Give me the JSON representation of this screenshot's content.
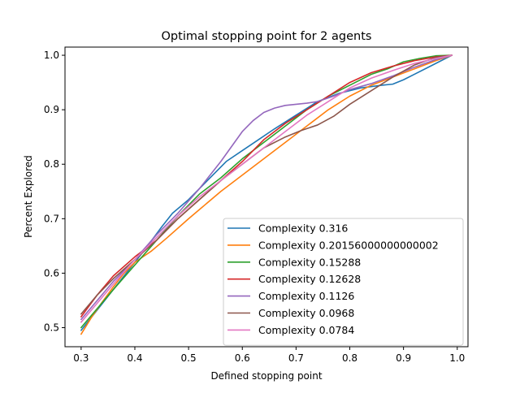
{
  "chart_data": {
    "type": "line",
    "title": "Optimal stopping point for 2 agents",
    "xlabel": "Defined stopping point",
    "ylabel": "Percent Explored",
    "xlim": [
      0.27,
      1.02
    ],
    "ylim": [
      0.465,
      1.015
    ],
    "xticks": [
      0.3,
      0.4,
      0.5,
      0.6,
      0.7,
      0.8,
      0.9,
      1.0
    ],
    "xtick_labels": [
      "0.3",
      "0.4",
      "0.5",
      "0.6",
      "0.7",
      "0.8",
      "0.9",
      "1.0"
    ],
    "yticks": [
      0.5,
      0.6,
      0.7,
      0.8,
      0.9,
      1.0
    ],
    "ytick_labels": [
      "0.5",
      "0.6",
      "0.7",
      "0.8",
      "0.9",
      "1.0"
    ],
    "grid": false,
    "legend_position": "lower-right",
    "series": [
      {
        "name": "Complexity 0.316",
        "color": "#1f77b4",
        "x": [
          0.3,
          0.32,
          0.34,
          0.36,
          0.38,
          0.4,
          0.42,
          0.45,
          0.47,
          0.5,
          0.53,
          0.55,
          0.57,
          0.6,
          0.63,
          0.66,
          0.7,
          0.74,
          0.78,
          0.82,
          0.86,
          0.88,
          0.9,
          0.92,
          0.95,
          0.97,
          0.99
        ],
        "y": [
          0.495,
          0.52,
          0.545,
          0.57,
          0.595,
          0.62,
          0.645,
          0.685,
          0.71,
          0.735,
          0.765,
          0.785,
          0.805,
          0.825,
          0.845,
          0.865,
          0.89,
          0.915,
          0.93,
          0.94,
          0.945,
          0.947,
          0.955,
          0.965,
          0.98,
          0.99,
          1.0
        ]
      },
      {
        "name": "Complexity 0.20156000000000002",
        "color": "#ff7f0e",
        "x": [
          0.3,
          0.32,
          0.34,
          0.36,
          0.38,
          0.4,
          0.43,
          0.46,
          0.5,
          0.53,
          0.56,
          0.6,
          0.64,
          0.68,
          0.72,
          0.76,
          0.8,
          0.84,
          0.88,
          0.92,
          0.96,
          0.99
        ],
        "y": [
          0.488,
          0.52,
          0.548,
          0.575,
          0.6,
          0.62,
          0.64,
          0.665,
          0.7,
          0.725,
          0.75,
          0.78,
          0.81,
          0.84,
          0.87,
          0.9,
          0.925,
          0.945,
          0.96,
          0.975,
          0.99,
          1.0
        ]
      },
      {
        "name": "Complexity 0.15288",
        "color": "#2ca02c",
        "x": [
          0.3,
          0.33,
          0.36,
          0.4,
          0.44,
          0.48,
          0.52,
          0.56,
          0.6,
          0.64,
          0.68,
          0.72,
          0.76,
          0.8,
          0.84,
          0.87,
          0.9,
          0.93,
          0.96,
          0.99
        ],
        "y": [
          0.5,
          0.535,
          0.57,
          0.615,
          0.66,
          0.705,
          0.745,
          0.775,
          0.81,
          0.84,
          0.87,
          0.9,
          0.925,
          0.945,
          0.965,
          0.975,
          0.988,
          0.994,
          0.999,
          1.0
        ]
      },
      {
        "name": "Complexity 0.12628",
        "color": "#d62728",
        "x": [
          0.3,
          0.33,
          0.36,
          0.4,
          0.44,
          0.48,
          0.52,
          0.56,
          0.6,
          0.64,
          0.68,
          0.72,
          0.76,
          0.8,
          0.84,
          0.88,
          0.92,
          0.96,
          0.99
        ],
        "y": [
          0.52,
          0.56,
          0.595,
          0.63,
          0.66,
          0.7,
          0.735,
          0.77,
          0.805,
          0.845,
          0.875,
          0.9,
          0.925,
          0.95,
          0.968,
          0.98,
          0.99,
          0.997,
          1.0
        ]
      },
      {
        "name": "Complexity 0.1126",
        "color": "#9467bd",
        "x": [
          0.3,
          0.33,
          0.36,
          0.4,
          0.44,
          0.48,
          0.52,
          0.56,
          0.6,
          0.62,
          0.64,
          0.66,
          0.68,
          0.7,
          0.72,
          0.74,
          0.77,
          0.8,
          0.84,
          0.88,
          0.92,
          0.96,
          0.99
        ],
        "y": [
          0.515,
          0.55,
          0.585,
          0.625,
          0.67,
          0.71,
          0.755,
          0.805,
          0.86,
          0.88,
          0.895,
          0.903,
          0.908,
          0.91,
          0.912,
          0.915,
          0.925,
          0.937,
          0.948,
          0.962,
          0.978,
          0.992,
          1.0
        ]
      },
      {
        "name": "Complexity 0.0968",
        "color": "#8c564b",
        "x": [
          0.3,
          0.33,
          0.36,
          0.4,
          0.44,
          0.48,
          0.52,
          0.56,
          0.6,
          0.64,
          0.68,
          0.71,
          0.74,
          0.77,
          0.8,
          0.84,
          0.88,
          0.92,
          0.96,
          0.99
        ],
        "y": [
          0.525,
          0.56,
          0.59,
          0.625,
          0.66,
          0.7,
          0.735,
          0.77,
          0.8,
          0.83,
          0.85,
          0.862,
          0.872,
          0.888,
          0.91,
          0.935,
          0.96,
          0.982,
          0.996,
          1.0
        ]
      },
      {
        "name": "Complexity 0.0784",
        "color": "#e377c2",
        "x": [
          0.3,
          0.33,
          0.36,
          0.4,
          0.44,
          0.48,
          0.52,
          0.56,
          0.6,
          0.64,
          0.68,
          0.72,
          0.76,
          0.8,
          0.84,
          0.88,
          0.92,
          0.96,
          0.99
        ],
        "y": [
          0.51,
          0.545,
          0.58,
          0.625,
          0.665,
          0.705,
          0.74,
          0.77,
          0.8,
          0.83,
          0.86,
          0.89,
          0.915,
          0.94,
          0.958,
          0.972,
          0.985,
          0.994,
          1.0
        ]
      }
    ]
  }
}
